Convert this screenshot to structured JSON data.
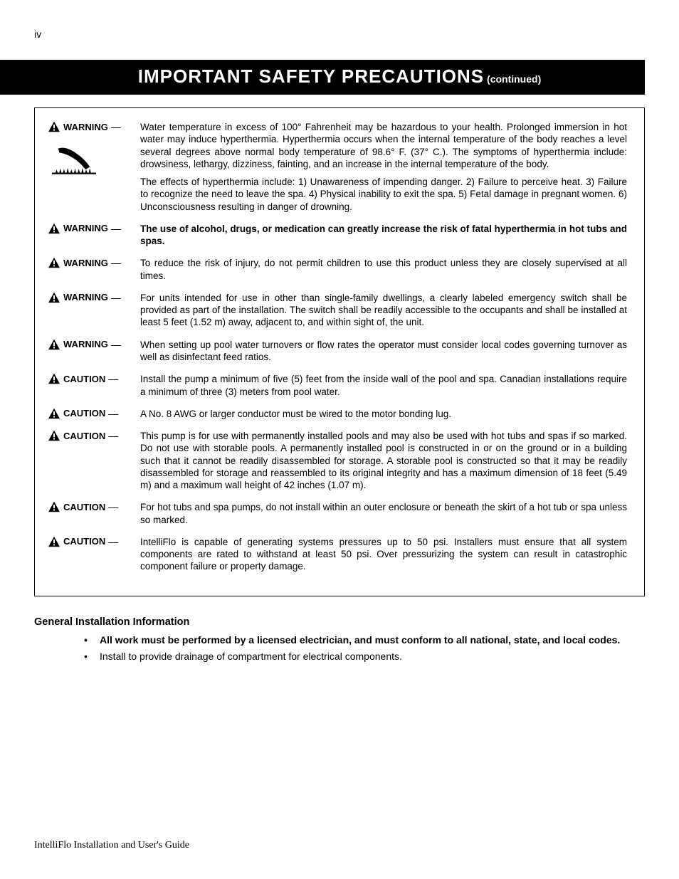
{
  "page_number": "iv",
  "title": {
    "main": "IMPORTANT SAFETY PRECAUTIONS",
    "continued": "(continued)"
  },
  "labels": {
    "warning": "WARNING",
    "caution": "CAUTION",
    "dash": " —"
  },
  "items": [
    {
      "label": "warning",
      "has_hand_icon": true,
      "paragraphs": [
        "Water temperature in excess of 100° Fahrenheit may be hazardous to your health. Prolonged immersion in hot water may induce hyperthermia. Hyperthermia occurs when the internal temperature of the body reaches a level several degrees above normal body temperature of 98.6° F. (37° C.). The symptoms of hyperthermia include: drowsiness, lethargy, dizziness, fainting, and an increase in the internal temperature of the body.",
        "The effects of hyperthermia include:  1) Unawareness of impending danger.  2) Failure to perceive heat.  3) Failure to recognize the need to leave the spa.  4) Physical inability to exit the spa.  5) Fetal damage in pregnant women.  6) Unconsciousness resulting in danger of drowning."
      ]
    },
    {
      "label": "warning",
      "bold": true,
      "paragraphs": [
        "The use of alcohol, drugs, or medication can greatly increase the risk of fatal hyperthermia in hot tubs and spas."
      ]
    },
    {
      "label": "warning",
      "paragraphs": [
        "To reduce the risk of injury, do not permit children to use this product unless they are closely supervised at all times."
      ]
    },
    {
      "label": "warning",
      "paragraphs": [
        "For units intended for use in other than single-family dwellings, a clearly labeled emergency switch shall be provided as part of the installation.  The switch shall be readily accessible to the occupants and shall be installed at least 5 feet (1.52 m) away, adjacent to, and within sight of, the unit."
      ]
    },
    {
      "label": "warning",
      "paragraphs": [
        "When setting up pool water turnovers or flow rates the operator must consider local codes governing turnover as well as disinfectant feed ratios."
      ]
    },
    {
      "label": "caution",
      "paragraphs": [
        "Install the pump a minimum of five (5) feet from the inside wall of the pool and spa. Canadian installations require a minimum of three (3) meters from pool water."
      ]
    },
    {
      "label": "caution",
      "paragraphs": [
        "A No. 8 AWG or larger conductor must be wired to the motor bonding lug."
      ]
    },
    {
      "label": "caution",
      "paragraphs": [
        "This pump is for use with permanently installed pools and may also be used with hot tubs and spas if so marked. Do not use with storable pools. A permanently installed pool is constructed in or on the ground or in a building such that it cannot be readily disassembled for storage. A storable pool is constructed so that it may be readily disassembled for storage and reassembled to its original integrity and has a maximum dimension of 18 feet (5.49 m) and a maximum wall height of 42 inches (1.07 m)."
      ]
    },
    {
      "label": "caution",
      "paragraphs": [
        "For hot tubs and spa pumps, do not install within an outer enclosure or beneath the skirt of a hot tub or spa unless so marked."
      ]
    },
    {
      "label": "caution",
      "paragraphs": [
        "IntelliFlo is capable of generating systems pressures up to 50 psi.  Installers must ensure that all system components are rated to withstand at least 50 psi.  Over pressurizing the system can result in catastrophic component failure or property damage."
      ]
    }
  ],
  "general": {
    "heading": "General Installation Information",
    "bullets": [
      {
        "text": "All work must be performed by a licensed electrician, and must conform to all national, state, and local codes.",
        "bold": true
      },
      {
        "text": "Install to provide drainage of compartment for electrical components.",
        "bold": false
      }
    ]
  },
  "footer": "IntelliFlo Installation and User's Guide"
}
